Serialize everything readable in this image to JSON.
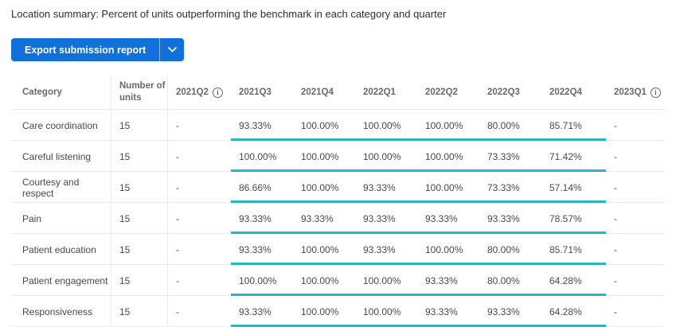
{
  "page": {
    "title": "Location summary: Percent of units outperforming the benchmark in each category and quarter"
  },
  "export": {
    "label": "Export submission report",
    "menu_icon": "chevron-down"
  },
  "icons": {
    "quarter_info": "info-circle",
    "info_glyph": "i"
  },
  "colors": {
    "accent_blue": "#1270DB",
    "benchmark_teal": "#2AB6BE",
    "divider_gray": "#e9eaeb"
  },
  "table": {
    "columns": [
      {
        "label": "Category",
        "info": false
      },
      {
        "label": "Number of units",
        "info": false
      },
      {
        "label": "2021Q2",
        "info": true
      },
      {
        "label": "2021Q3",
        "info": false
      },
      {
        "label": "2021Q4",
        "info": false
      },
      {
        "label": "2022Q1",
        "info": false
      },
      {
        "label": "2022Q2",
        "info": false
      },
      {
        "label": "2022Q3",
        "info": false
      },
      {
        "label": "2022Q4",
        "info": false
      },
      {
        "label": "2023Q1",
        "info": true
      }
    ],
    "benchmark_underline_columns": [
      "2021Q3",
      "2021Q4",
      "2022Q1",
      "2022Q2",
      "2022Q3",
      "2022Q4"
    ],
    "rows": [
      {
        "category": "Care coordination",
        "units": "15",
        "values": [
          "-",
          "93.33%",
          "100.00%",
          "100.00%",
          "100.00%",
          "80.00%",
          "85.71%",
          "-"
        ]
      },
      {
        "category": "Careful listening",
        "units": "15",
        "values": [
          "-",
          "100.00%",
          "100.00%",
          "100.00%",
          "100.00%",
          "73.33%",
          "71.42%",
          "-"
        ]
      },
      {
        "category": "Courtesy and respect",
        "units": "15",
        "values": [
          "-",
          "86.66%",
          "100.00%",
          "93.33%",
          "100.00%",
          "73.33%",
          "57.14%",
          "-"
        ]
      },
      {
        "category": "Pain",
        "units": "15",
        "values": [
          "-",
          "93.33%",
          "93.33%",
          "93.33%",
          "93.33%",
          "93.33%",
          "78.57%",
          "-"
        ]
      },
      {
        "category": "Patient education",
        "units": "15",
        "values": [
          "-",
          "93.33%",
          "100.00%",
          "93.33%",
          "100.00%",
          "80.00%",
          "85.71%",
          "-"
        ]
      },
      {
        "category": "Patient engagement",
        "units": "15",
        "values": [
          "-",
          "100.00%",
          "100.00%",
          "100.00%",
          "93.33%",
          "80.00%",
          "64.28%",
          "-"
        ]
      },
      {
        "category": "Responsiveness",
        "units": "15",
        "values": [
          "-",
          "93.33%",
          "100.00%",
          "100.00%",
          "93.33%",
          "93.33%",
          "64.28%",
          "-"
        ]
      }
    ]
  }
}
